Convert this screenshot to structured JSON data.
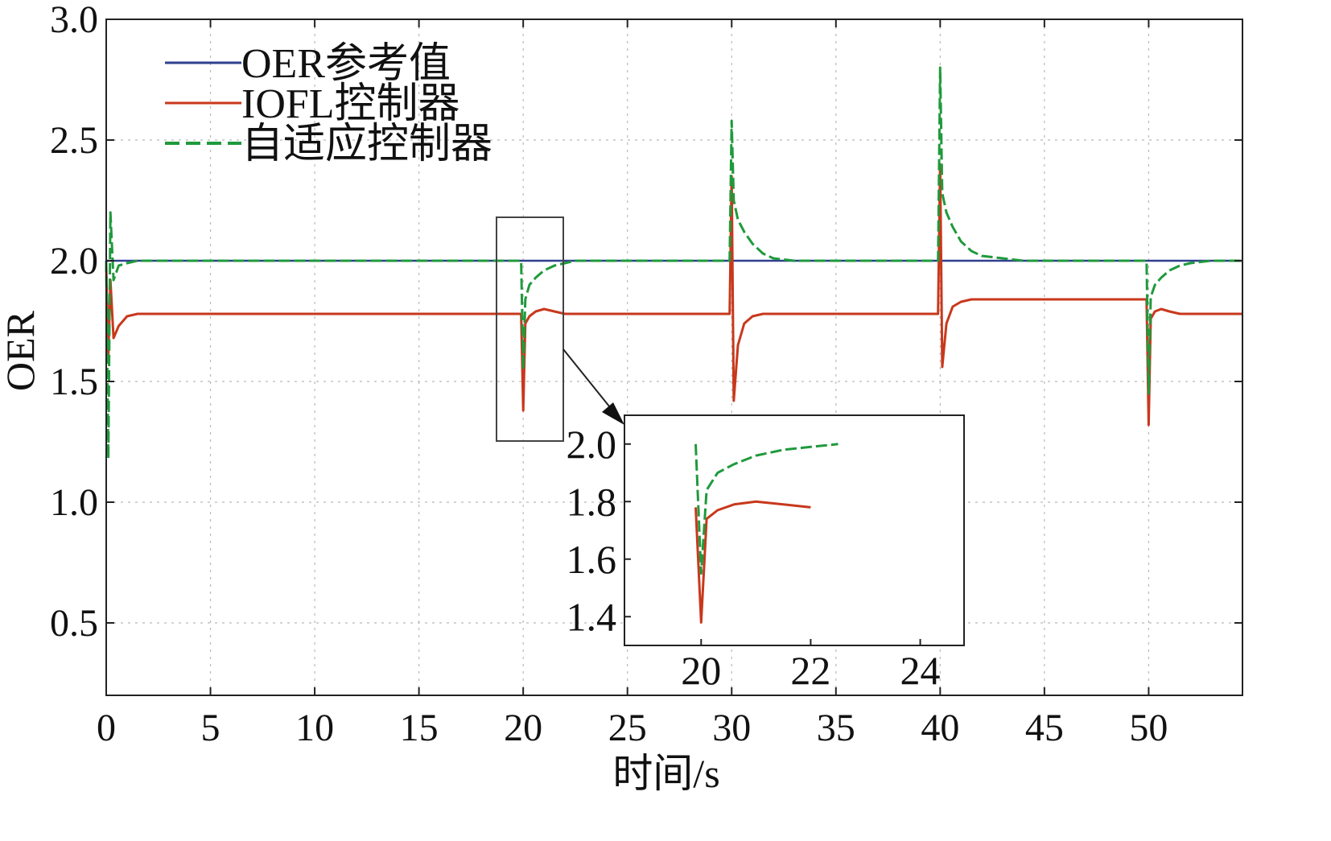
{
  "chart_data": {
    "type": "line",
    "title": "",
    "xlabel": "时间/s",
    "ylabel": "OER",
    "xlim": [
      0,
      54.5
    ],
    "ylim": [
      0.2,
      3.0
    ],
    "xticks": [
      "0",
      "5",
      "10",
      "15",
      "20",
      "25",
      "30",
      "35",
      "40",
      "45",
      "50"
    ],
    "yticks": [
      "0.5",
      "1.0",
      "1.5",
      "2.0",
      "2.5",
      "3.0"
    ],
    "grid": true,
    "legend_position": "top-left",
    "series": [
      {
        "name": "OER参考值",
        "color": "#2f3f8f",
        "style": "solid",
        "x": [
          0,
          54.5
        ],
        "y": [
          2.0,
          2.0
        ]
      },
      {
        "name": "IOFL控制器",
        "color": "#c8381c",
        "style": "solid",
        "x": [
          0,
          0.1,
          0.2,
          0.35,
          0.6,
          1.0,
          1.5,
          19.9,
          20.0,
          20.1,
          20.3,
          20.6,
          21.0,
          21.5,
          22.0,
          29.9,
          30.0,
          30.1,
          30.3,
          30.6,
          31.0,
          31.5,
          39.9,
          40.0,
          40.1,
          40.3,
          40.6,
          41.0,
          41.5,
          49.9,
          50.0,
          50.1,
          50.3,
          50.6,
          51.0,
          51.5,
          54.5
        ],
        "y": [
          1.98,
          1.6,
          1.92,
          1.68,
          1.73,
          1.77,
          1.78,
          1.78,
          1.38,
          1.74,
          1.77,
          1.79,
          1.8,
          1.79,
          1.78,
          1.78,
          2.35,
          1.42,
          1.65,
          1.74,
          1.77,
          1.78,
          1.78,
          2.4,
          1.56,
          1.74,
          1.81,
          1.83,
          1.84,
          1.84,
          1.32,
          1.76,
          1.79,
          1.8,
          1.79,
          1.78,
          1.78
        ]
      },
      {
        "name": "自适应控制器",
        "color": "#1f9a3c",
        "style": "dashed",
        "x": [
          0,
          0.1,
          0.2,
          0.35,
          0.6,
          1.0,
          1.5,
          19.9,
          20.0,
          20.1,
          20.3,
          20.6,
          21.0,
          21.5,
          22.0,
          22.5,
          29.9,
          30.0,
          30.1,
          30.3,
          30.6,
          31.0,
          31.5,
          32.0,
          33.0,
          34.0,
          39.9,
          40.0,
          40.1,
          40.3,
          40.6,
          41.0,
          41.5,
          42.0,
          43.0,
          44.0,
          49.9,
          50.0,
          50.1,
          50.3,
          50.6,
          51.0,
          51.5,
          52.0,
          53.0,
          54.5
        ],
        "y": [
          2.0,
          1.18,
          2.2,
          1.92,
          1.98,
          1.99,
          2.0,
          2.0,
          1.55,
          1.84,
          1.9,
          1.93,
          1.96,
          1.98,
          1.99,
          2.0,
          2.0,
          2.58,
          2.25,
          2.17,
          2.12,
          2.07,
          2.03,
          2.01,
          2.0,
          2.0,
          2.0,
          2.8,
          2.28,
          2.2,
          2.14,
          2.08,
          2.04,
          2.02,
          2.01,
          2.0,
          2.0,
          1.45,
          1.85,
          1.9,
          1.93,
          1.96,
          1.98,
          1.99,
          2.0,
          2.0
        ]
      }
    ],
    "inset": {
      "xlim": [
        18.6,
        24.8
      ],
      "ylim": [
        1.3,
        2.1
      ],
      "xticks": [
        "20",
        "22",
        "24"
      ],
      "yticks": [
        "1.4",
        "1.6",
        "1.8",
        "2.0"
      ]
    }
  }
}
